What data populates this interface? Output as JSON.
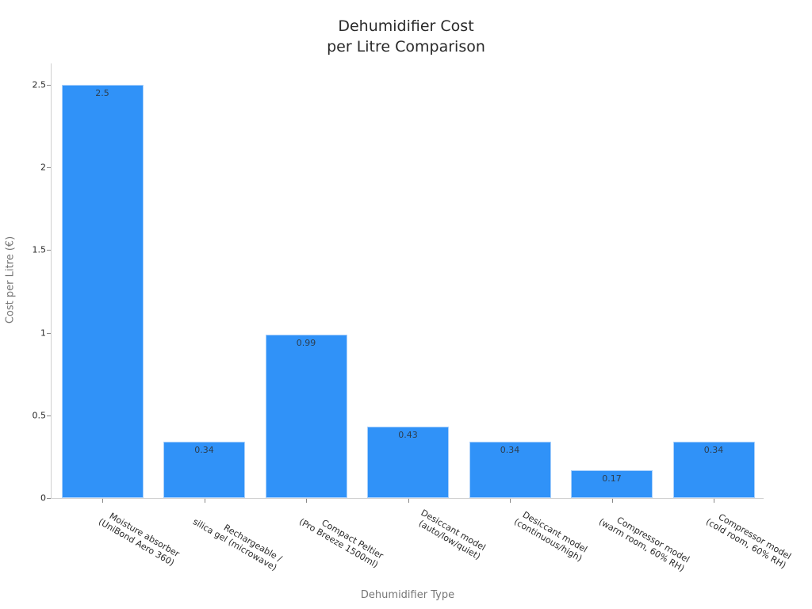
{
  "chart_data": {
    "type": "bar",
    "title": "Dehumidifier Cost\nper Litre Comparison",
    "title_lines": [
      "Dehumidifier Cost",
      "per Litre Comparison"
    ],
    "xlabel": "Dehumidifier Type",
    "ylabel": "Cost per Litre (€)",
    "ylim": [
      0,
      2.6
    ],
    "yticks": [
      "0",
      "0.5",
      "1",
      "1.5",
      "2",
      "2.5"
    ],
    "grid": false,
    "legend": null,
    "bar_color": "#3092f8",
    "categories": [
      "Moisture absorber\n(UniBond Aero 360)",
      "Rechargeable /\nsilica gel (microwave)",
      "Compact Peltier\n(Pro Breeze 1500ml)",
      "Desiccant model\n(auto/low/quiet)",
      "Desiccant model\n(continuous/high)",
      "Compressor model\n(warm room, 60% RH)",
      "Compressor model\n(cold room, 60% RH)"
    ],
    "values": [
      2.5,
      0.34,
      0.99,
      0.43,
      0.34,
      0.17,
      0.34
    ],
    "value_labels": [
      "2.5",
      "0.34",
      "0.99",
      "0.43",
      "0.34",
      "0.17",
      "0.34"
    ]
  }
}
